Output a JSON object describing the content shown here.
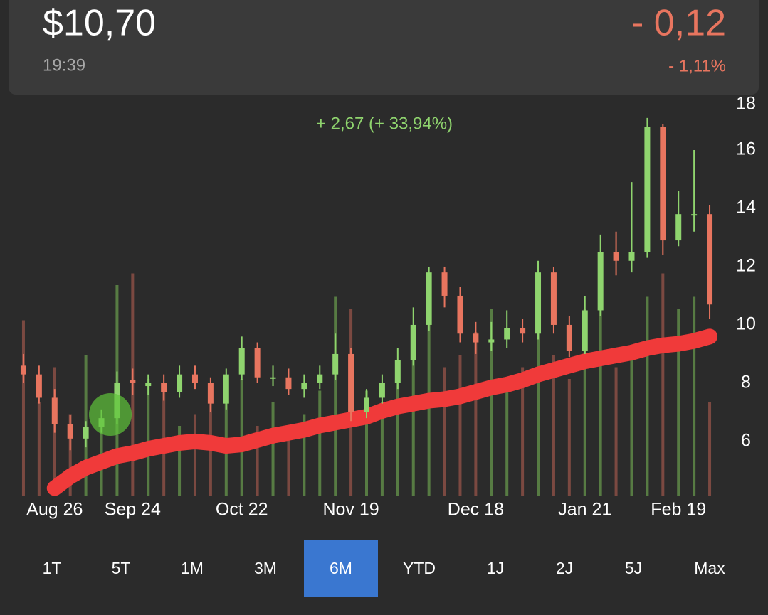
{
  "header": {
    "price": "$10,70",
    "time": "19:39",
    "change": "- 0,12",
    "change_percent": "- 1,11%"
  },
  "chart_data": {
    "type": "candlestick",
    "annotation": "+ 2,67 (+ 33,94%)",
    "categories": [
      null,
      null,
      "Aug 26",
      null,
      null,
      null,
      null,
      "Sep 24",
      null,
      null,
      null,
      null,
      null,
      null,
      "Oct 22",
      null,
      null,
      null,
      null,
      null,
      null,
      "Nov 19",
      null,
      null,
      null,
      null,
      null,
      null,
      null,
      "Dec 18",
      null,
      null,
      null,
      null,
      null,
      null,
      "Jan 21",
      null,
      null,
      null,
      null,
      null,
      "Feb 19",
      null,
      null
    ],
    "open": [
      8.6,
      8.3,
      7.5,
      6.6,
      6.1,
      6.5,
      6.8,
      8.1,
      7.9,
      8.0,
      7.7,
      8.3,
      8.0,
      7.3,
      8.3,
      9.2,
      8.2,
      8.2,
      7.8,
      8.0,
      8.3,
      9.0,
      7.0,
      7.5,
      8.0,
      8.8,
      10.0,
      11.8,
      11.0,
      9.7,
      9.4,
      9.5,
      9.9,
      9.7,
      11.8,
      10.0,
      9.1,
      10.5,
      12.5,
      12.2,
      12.5,
      16.8,
      12.9,
      13.8,
      13.8
    ],
    "high": [
      9.0,
      8.6,
      7.8,
      6.9,
      6.7,
      7.1,
      8.4,
      8.5,
      8.3,
      8.3,
      8.6,
      8.6,
      8.2,
      8.5,
      9.6,
      9.4,
      8.6,
      8.5,
      8.3,
      8.6,
      9.7,
      9.2,
      7.8,
      8.3,
      9.2,
      10.6,
      12.0,
      12.0,
      11.3,
      10.1,
      10.1,
      10.5,
      10.2,
      12.2,
      12.0,
      10.3,
      11.0,
      13.1,
      13.2,
      14.9,
      17.1,
      16.9,
      14.6,
      16.0,
      14.1
    ],
    "low": [
      8.0,
      7.3,
      6.3,
      5.7,
      5.8,
      6.3,
      6.6,
      7.6,
      7.6,
      7.4,
      7.5,
      7.8,
      7.0,
      7.1,
      8.1,
      8.0,
      7.9,
      7.6,
      7.5,
      7.8,
      8.1,
      6.7,
      6.8,
      7.3,
      7.8,
      8.6,
      9.8,
      10.6,
      9.4,
      9.0,
      9.1,
      9.2,
      9.4,
      9.5,
      9.7,
      8.9,
      9.0,
      10.3,
      11.7,
      11.8,
      12.3,
      12.4,
      12.7,
      13.2,
      10.2
    ],
    "close": [
      8.3,
      7.5,
      6.6,
      6.1,
      6.5,
      6.8,
      8.0,
      8.0,
      8.0,
      7.7,
      8.3,
      8.0,
      7.3,
      8.3,
      9.2,
      8.2,
      8.2,
      7.8,
      8.0,
      8.3,
      9.0,
      7.0,
      7.5,
      8.0,
      8.8,
      10.0,
      11.8,
      11.0,
      9.7,
      9.4,
      9.5,
      9.9,
      9.7,
      11.8,
      10.0,
      9.1,
      10.5,
      12.5,
      12.2,
      12.5,
      16.8,
      12.9,
      13.8,
      13.8,
      10.7
    ],
    "volume": [
      75,
      40,
      55,
      35,
      60,
      30,
      90,
      95,
      50,
      45,
      30,
      35,
      40,
      45,
      50,
      30,
      40,
      25,
      35,
      45,
      85,
      80,
      45,
      40,
      50,
      60,
      95,
      55,
      60,
      70,
      80,
      45,
      55,
      90,
      60,
      50,
      80,
      90,
      55,
      60,
      85,
      95,
      80,
      85,
      40
    ],
    "volume_lim": [
      0,
      100
    ],
    "series": [
      {
        "type": "line",
        "color": "#f03a3a",
        "values": [
          null,
          null,
          4.4,
          4.8,
          5.1,
          5.3,
          5.5,
          5.6,
          5.75,
          5.85,
          5.95,
          6.0,
          5.95,
          5.85,
          5.9,
          6.05,
          6.2,
          6.3,
          6.4,
          6.55,
          6.65,
          6.75,
          6.85,
          7.05,
          7.2,
          7.3,
          7.4,
          7.45,
          7.55,
          7.7,
          7.85,
          7.95,
          8.1,
          8.3,
          8.45,
          8.6,
          8.75,
          8.85,
          8.95,
          9.05,
          9.2,
          9.3,
          9.35,
          9.45,
          9.6
        ]
      }
    ],
    "up_color": "#8fd46e",
    "down_color": "#e8755f",
    "ylim": [
      4.12,
      18
    ],
    "yticks": [
      6,
      8,
      10,
      12,
      14,
      16,
      18
    ]
  },
  "range_buttons": {
    "items": [
      "1T",
      "5T",
      "1M",
      "3M",
      "6M",
      "YTD",
      "1J",
      "2J",
      "5J",
      "Max"
    ],
    "selected": 4
  }
}
